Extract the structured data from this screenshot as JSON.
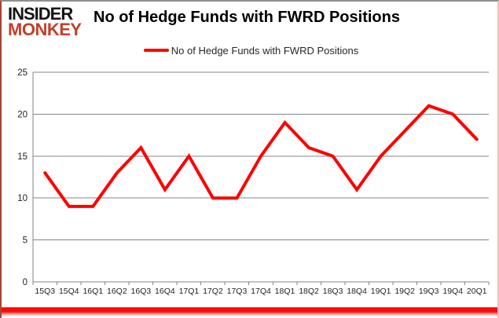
{
  "logo": {
    "line1": "INSIDER",
    "line2": "MONKEY"
  },
  "header": {
    "title": "No of Hedge Funds with FWRD Positions"
  },
  "legend": {
    "label": "No of Hedge Funds with FWRD Positions",
    "line_color": "#ff0000"
  },
  "chart_data": {
    "type": "line",
    "title": "No of Hedge Funds with FWRD Positions",
    "categories": [
      "15Q3",
      "15Q4",
      "16Q1",
      "16Q2",
      "16Q3",
      "16Q4",
      "17Q1",
      "17Q2",
      "17Q3",
      "17Q4",
      "18Q1",
      "18Q2",
      "18Q3",
      "18Q4",
      "19Q1",
      "19Q2",
      "19Q3",
      "19Q4",
      "20Q1"
    ],
    "series": [
      {
        "name": "No of Hedge Funds with FWRD Positions",
        "values": [
          13,
          9,
          9,
          13,
          16,
          11,
          15,
          10,
          10,
          15,
          19,
          16,
          15,
          11,
          15,
          18,
          21,
          20,
          17
        ],
        "color": "#ff0000"
      }
    ],
    "xlabel": "",
    "ylabel": "",
    "ylim": [
      0,
      25
    ],
    "yticks": [
      0,
      5,
      10,
      15,
      20,
      25
    ],
    "grid": "horizontal",
    "legend_position": "top-center",
    "colors": {
      "gridline": "#848484",
      "axis": "#848484",
      "tick_label": "#1f1f1f",
      "background": "#ffffff"
    }
  }
}
